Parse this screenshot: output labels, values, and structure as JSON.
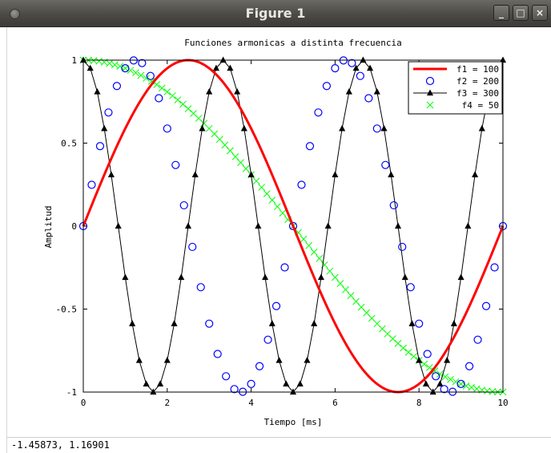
{
  "window": {
    "title": "Figure 1",
    "buttons": {
      "minimize": "_",
      "maximize": "□",
      "close": "×"
    }
  },
  "status": {
    "coords": "-1.45873,  1.16901"
  },
  "colors": {
    "f1": "#ff0000",
    "f2": "#0000ff",
    "f3": "#000000",
    "f4": "#00ff00",
    "titlebar": "#4b4a45"
  },
  "chart_data": {
    "type": "line",
    "title": "Funciones armonicas a distinta frecuencia",
    "xlabel": "Tiempo [ms]",
    "ylabel": "Amplitud",
    "xlim": [
      0,
      10
    ],
    "ylim": [
      -1,
      1
    ],
    "xticks": [
      0,
      2,
      4,
      6,
      8,
      10
    ],
    "xtick_labels": [
      "0",
      "2",
      "4",
      "6",
      "8",
      "10"
    ],
    "yticks": [
      -1,
      -0.5,
      0,
      0.5,
      1
    ],
    "ytick_labels": [
      "-1",
      "-0.5",
      "0",
      "0.5",
      "1"
    ],
    "grid": false,
    "legend_position": "top-right",
    "series": [
      {
        "name": "f1 = 100",
        "function": "sin",
        "frequency_hz": 100,
        "style": "line",
        "color": "#ff0000",
        "x_start": 0,
        "x_end": 10,
        "samples": 201
      },
      {
        "name": "f2 = 200",
        "function": "sin",
        "frequency_hz": 200,
        "style": "circle-markers",
        "color": "#0000ff",
        "x_start": 0,
        "x_end": 10,
        "samples": 51
      },
      {
        "name": "f3 = 300",
        "function": "cos",
        "frequency_hz": 300,
        "style": "line-triangle-markers",
        "color": "#000000",
        "x_start": 0,
        "x_end": 10,
        "samples": 61
      },
      {
        "name": "f4 = 50",
        "function": "cos",
        "frequency_hz": 50,
        "style": "x-markers",
        "color": "#00ff00",
        "x_start": 0,
        "x_end": 10,
        "samples": 81
      }
    ]
  }
}
